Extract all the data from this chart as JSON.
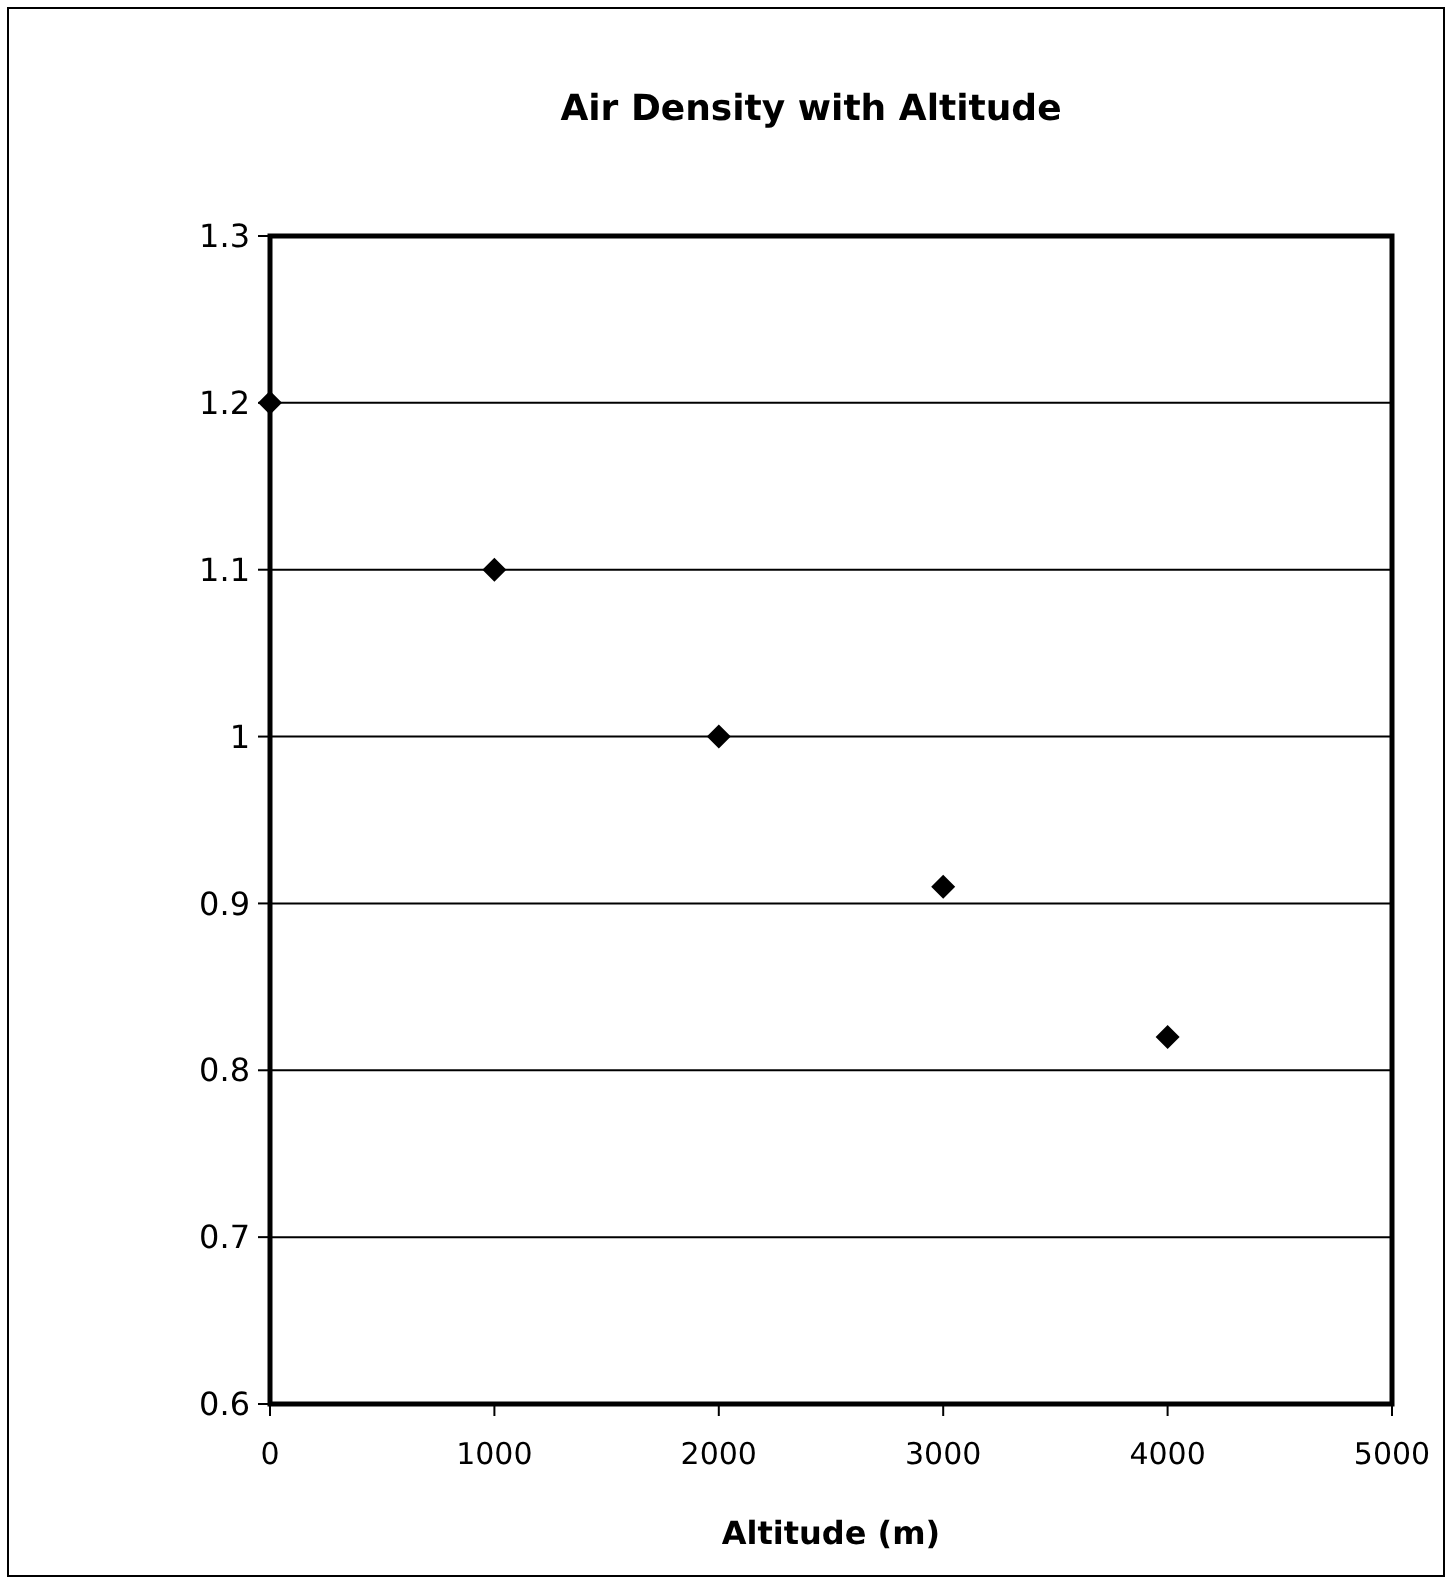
{
  "chart_data": {
    "type": "scatter",
    "title": "Air Density with Altitude",
    "xlabel": "Altitude (m)",
    "x": [
      0,
      1000,
      2000,
      3000,
      4000
    ],
    "series": [
      {
        "color": "#000000",
        "values": [
          1.2,
          1.1,
          1.0,
          0.91,
          0.82
        ]
      }
    ],
    "xlim": [
      0,
      5000
    ],
    "xticks": [
      0,
      1000,
      2000,
      3000,
      4000,
      5000
    ],
    "ylim": [
      0.6,
      1.3
    ],
    "yticks": [
      0.6,
      0.7,
      0.8,
      0.9,
      1,
      1.1,
      1.2,
      1.3
    ],
    "grid": "y",
    "marker": "diamond"
  }
}
